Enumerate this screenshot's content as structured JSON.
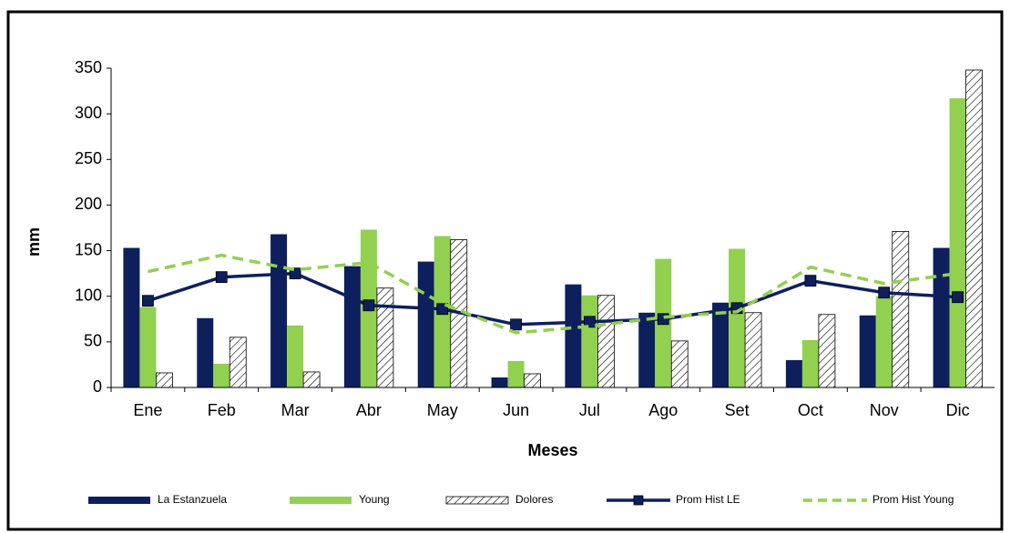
{
  "chart_data": {
    "type": "bar",
    "x_label": "Meses",
    "y_label": "mm",
    "categories": [
      "Ene",
      "Feb",
      "Mar",
      "Abr",
      "May",
      "Jun",
      "Jul",
      "Ago",
      "Set",
      "Oct",
      "Nov",
      "Dic"
    ],
    "series": [
      {
        "name": "La Estanzuela",
        "type": "bar",
        "color": "#0d1f5c",
        "values": [
          153,
          76,
          168,
          133,
          138,
          11,
          113,
          82,
          93,
          30,
          79,
          153
        ]
      },
      {
        "name": "Young",
        "type": "bar",
        "color": "#92d050",
        "values": [
          88,
          26,
          68,
          173,
          166,
          29,
          101,
          141,
          152,
          52,
          100,
          317
        ]
      },
      {
        "name": "Dolores",
        "type": "bar",
        "color": "#ffffff",
        "pattern": "hatch",
        "values": [
          16,
          55,
          17,
          109,
          162,
          15,
          101,
          51,
          82,
          80,
          171,
          348
        ]
      },
      {
        "name": "Prom Hist LE",
        "type": "line",
        "color": "#0d1f5c",
        "marker": "square",
        "linestyle": "solid",
        "values": [
          95,
          121,
          125,
          90,
          86,
          69,
          72,
          75,
          87,
          117,
          104,
          99
        ]
      },
      {
        "name": "Prom Hist Young",
        "type": "line",
        "color": "#92d050",
        "linestyle": "dashed",
        "values": [
          127,
          145,
          129,
          137,
          92,
          60,
          67,
          77,
          83,
          132,
          114,
          125
        ]
      }
    ],
    "ylim": [
      0,
      350
    ],
    "yticks": [
      0,
      50,
      100,
      150,
      200,
      250,
      300,
      350
    ],
    "grid": false,
    "legend": "bottom"
  }
}
